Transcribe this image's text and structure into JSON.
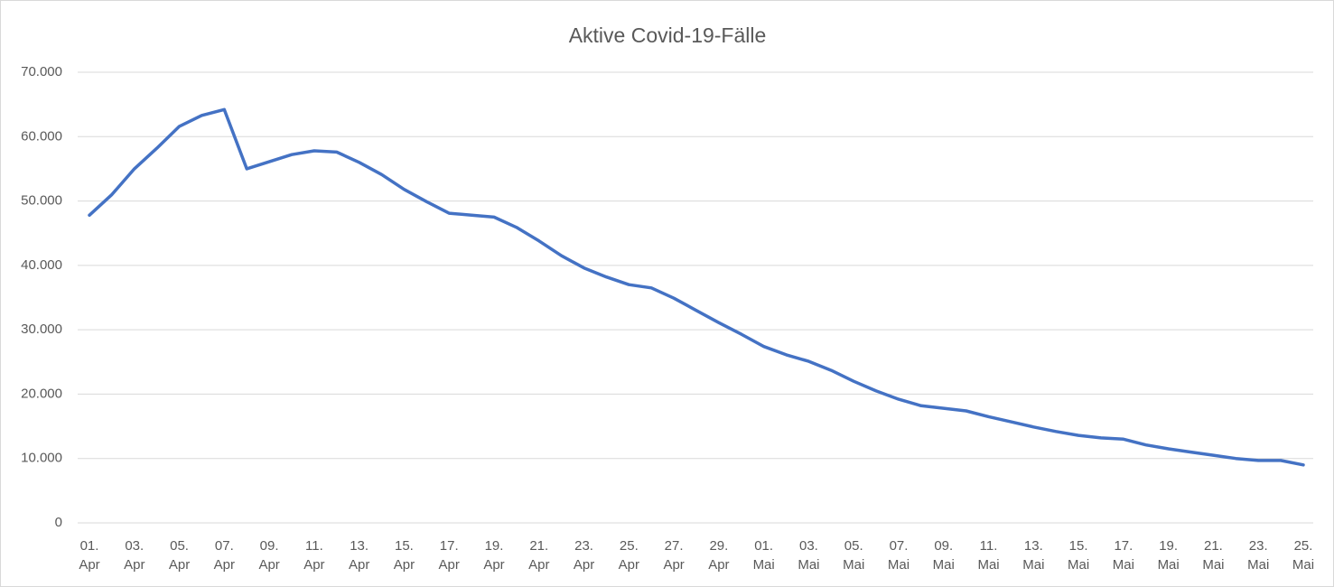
{
  "chart_data": {
    "type": "line",
    "title": "Aktive Covid-19-Fälle",
    "categories": [
      "01. Apr",
      null,
      "03. Apr",
      null,
      "05. Apr",
      null,
      "07. Apr",
      null,
      "09. Apr",
      null,
      "11. Apr",
      null,
      "13. Apr",
      null,
      "15. Apr",
      null,
      "17. Apr",
      null,
      "19. Apr",
      null,
      "21. Apr",
      null,
      "23. Apr",
      null,
      "25. Apr",
      null,
      "27. Apr",
      null,
      "29. Apr",
      null,
      "01. Mai",
      null,
      "03. Mai",
      null,
      "05. Mai",
      null,
      "07. Mai",
      null,
      "09. Mai",
      null,
      "11. Mai",
      null,
      "13. Mai",
      null,
      "15. Mai",
      null,
      "17. Mai",
      null,
      "19. Mai",
      null,
      "21. Mai",
      null,
      "23. Mai",
      null,
      "25. Mai"
    ],
    "series": [
      {
        "name": "Aktive Covid-19-Fälle",
        "color": "#4472c4",
        "values": [
          47800,
          51000,
          55000,
          58200,
          61600,
          63300,
          64200,
          55000,
          56100,
          57200,
          57800,
          57600,
          56000,
          54100,
          51800,
          49900,
          48100,
          47800,
          47500,
          45900,
          43800,
          41500,
          39600,
          38200,
          37000,
          36500,
          34900,
          33000,
          31100,
          29300,
          27400,
          26100,
          25100,
          23700,
          22000,
          20500,
          19200,
          18200,
          17800,
          17400,
          16500,
          15700,
          14900,
          14200,
          13600,
          13200,
          13000,
          12100,
          11500,
          11000,
          10500,
          10000,
          9700,
          9700,
          9000
        ]
      }
    ],
    "ylim": [
      0,
      70000
    ],
    "yticks": [
      0,
      {
        "value": 10000,
        "label": "10.000"
      },
      {
        "value": 20000,
        "label": "20.000"
      },
      {
        "value": 30000,
        "label": "30.000"
      },
      {
        "value": 40000,
        "label": "40.000"
      },
      {
        "value": 50000,
        "label": "50.000"
      },
      {
        "value": 60000,
        "label": "60.000"
      },
      {
        "value": 70000,
        "label": "70.000"
      }
    ],
    "grid": true
  }
}
